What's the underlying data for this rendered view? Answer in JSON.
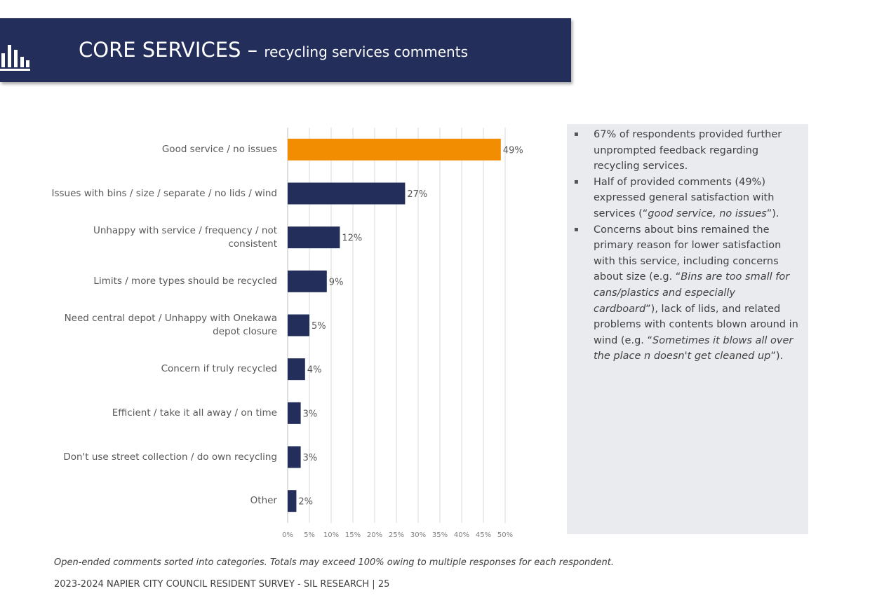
{
  "header": {
    "title": "CORE SERVICES –",
    "subtitle": "recycling services comments"
  },
  "chart_data": {
    "type": "hbar",
    "categories": [
      "Good service / no issues",
      "Issues with bins / size / separate / no lids / wind",
      "Unhappy with service / frequency / not consistent",
      "Limits / more types should be recycled",
      "Need central depot / Unhappy with Onekawa depot closure",
      "Concern if truly recycled",
      "Efficient / take it all away / on time",
      "Don't use street collection / do own recycling",
      "Other"
    ],
    "values": [
      49,
      27,
      12,
      9,
      5,
      4,
      3,
      3,
      2
    ],
    "value_labels": [
      "49%",
      "27%",
      "12%",
      "9%",
      "5%",
      "4%",
      "3%",
      "3%",
      "2%"
    ],
    "colors": [
      "#f28c00",
      "#232f5a",
      "#232f5a",
      "#232f5a",
      "#232f5a",
      "#232f5a",
      "#232f5a",
      "#232f5a",
      "#232f5a"
    ],
    "xlim": [
      0,
      50
    ],
    "xticks": [
      {
        "value": 0,
        "label": "0%"
      },
      {
        "value": 5,
        "label": "5%"
      },
      {
        "value": 10,
        "label": "10%"
      },
      {
        "value": 15,
        "label": "15%"
      },
      {
        "value": 20,
        "label": "20%"
      },
      {
        "value": 25,
        "label": "25%"
      },
      {
        "value": 30,
        "label": "30%"
      },
      {
        "value": 35,
        "label": "35%"
      },
      {
        "value": 40,
        "label": "40%"
      },
      {
        "value": 45,
        "label": "45%"
      },
      {
        "value": 50,
        "label": "50%"
      }
    ],
    "grid": true
  },
  "notes": [
    [
      "67% of respondents provided further unprompted feedback regarding recycling services."
    ],
    [
      "Half of provided comments (49%) expressed general satisfaction with services (“",
      "good service, no issues",
      "”)."
    ],
    [
      "Concerns about bins remained the primary reason for lower satisfaction with this service, including concerns about size (e.g. “",
      "Bins are too small for cans/plastics and especially cardboard",
      "”), lack of lids, and related problems with contents blown around in wind (e.g. “",
      "Sometimes it blows all over the place n doesn't get cleaned up",
      "”)."
    ]
  ],
  "footnote": "Open-ended comments sorted into categories. Totals may exceed 100% owing to multiple responses for each respondent.",
  "footer": "2023-2024 NAPIER CITY COUNCIL RESIDENT SURVEY - SIL RESEARCH | 25"
}
